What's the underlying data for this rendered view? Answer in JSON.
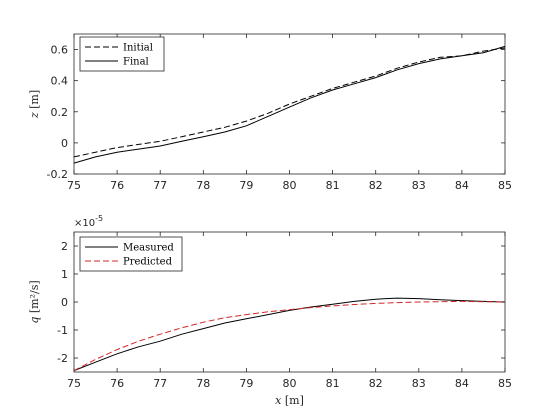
{
  "chart_data": [
    {
      "type": "line",
      "xlabel": "",
      "ylabel": "z [m]",
      "ylabel_var": "z",
      "ylabel_unit": "[m]",
      "xlim": [
        75,
        85
      ],
      "ylim": [
        -0.2,
        0.7
      ],
      "xticks": [
        "75",
        "76",
        "77",
        "78",
        "79",
        "80",
        "81",
        "82",
        "83",
        "84",
        "85"
      ],
      "yticks": [
        "-0.2",
        "0",
        "0.2",
        "0.4",
        "0.6"
      ],
      "ytick_values": [
        -0.2,
        0,
        0.2,
        0.4,
        0.6
      ],
      "grid": false,
      "legend": "top-left",
      "series": [
        {
          "name": "Initial",
          "style": "dashed",
          "color": "#000000",
          "x": [
            75,
            75.5,
            76,
            76.5,
            77,
            77.5,
            78,
            78.5,
            79,
            79.5,
            80,
            80.5,
            81,
            81.5,
            82,
            82.5,
            83,
            83.5,
            84,
            84.5,
            85
          ],
          "y": [
            -0.09,
            -0.06,
            -0.03,
            -0.01,
            0.01,
            0.04,
            0.07,
            0.1,
            0.14,
            0.19,
            0.25,
            0.3,
            0.35,
            0.39,
            0.43,
            0.48,
            0.52,
            0.55,
            0.56,
            0.59,
            0.61
          ]
        },
        {
          "name": "Final",
          "style": "solid",
          "color": "#000000",
          "x": [
            75,
            75.5,
            76,
            76.5,
            77,
            77.5,
            78,
            78.5,
            79,
            79.5,
            80,
            80.5,
            81,
            81.5,
            82,
            82.5,
            83,
            83.5,
            84,
            84.5,
            85
          ],
          "y": [
            -0.13,
            -0.09,
            -0.06,
            -0.04,
            -0.02,
            0.01,
            0.04,
            0.07,
            0.11,
            0.17,
            0.23,
            0.29,
            0.34,
            0.38,
            0.42,
            0.47,
            0.51,
            0.54,
            0.56,
            0.58,
            0.62
          ]
        }
      ]
    },
    {
      "type": "line",
      "xlabel": "x [m]",
      "xlabel_var": "x",
      "xlabel_unit": "[m]",
      "ylabel": "q [m²/s]",
      "ylabel_var": "q",
      "ylabel_unit": "[m²/s]",
      "y_multiplier": "×10",
      "y_multiplier_exp": "-5",
      "xlim": [
        75,
        85
      ],
      "ylim": [
        -2.5,
        2.5
      ],
      "xticks": [
        "75",
        "76",
        "77",
        "78",
        "79",
        "80",
        "81",
        "82",
        "83",
        "84",
        "85"
      ],
      "yticks": [
        "-2",
        "-1",
        "0",
        "1",
        "2"
      ],
      "ytick_values": [
        -2,
        -1,
        0,
        1,
        2
      ],
      "grid": false,
      "legend": "top-left",
      "series": [
        {
          "name": "Measured",
          "style": "solid",
          "color": "#000000",
          "x": [
            75,
            75.5,
            76,
            76.5,
            77,
            77.5,
            78,
            78.5,
            79,
            79.5,
            80,
            80.5,
            81,
            81.5,
            82,
            82.5,
            83,
            83.5,
            84,
            84.5,
            85
          ],
          "y": [
            -2.45,
            -2.15,
            -1.85,
            -1.6,
            -1.4,
            -1.15,
            -0.95,
            -0.75,
            -0.6,
            -0.45,
            -0.3,
            -0.18,
            -0.08,
            0.02,
            0.1,
            0.14,
            0.12,
            0.08,
            0.05,
            0.02,
            0.0
          ]
        },
        {
          "name": "Predicted",
          "style": "dashed",
          "color": "#d62728",
          "x": [
            75,
            75.5,
            76,
            76.5,
            77,
            77.5,
            78,
            78.5,
            79,
            79.5,
            80,
            80.5,
            81,
            81.5,
            82,
            82.5,
            83,
            83.5,
            84,
            84.5,
            85
          ],
          "y": [
            -2.45,
            -2.05,
            -1.7,
            -1.4,
            -1.15,
            -0.92,
            -0.72,
            -0.56,
            -0.45,
            -0.35,
            -0.27,
            -0.2,
            -0.14,
            -0.09,
            -0.05,
            -0.02,
            0.0,
            0.01,
            0.02,
            0.01,
            0.0
          ]
        }
      ]
    }
  ]
}
